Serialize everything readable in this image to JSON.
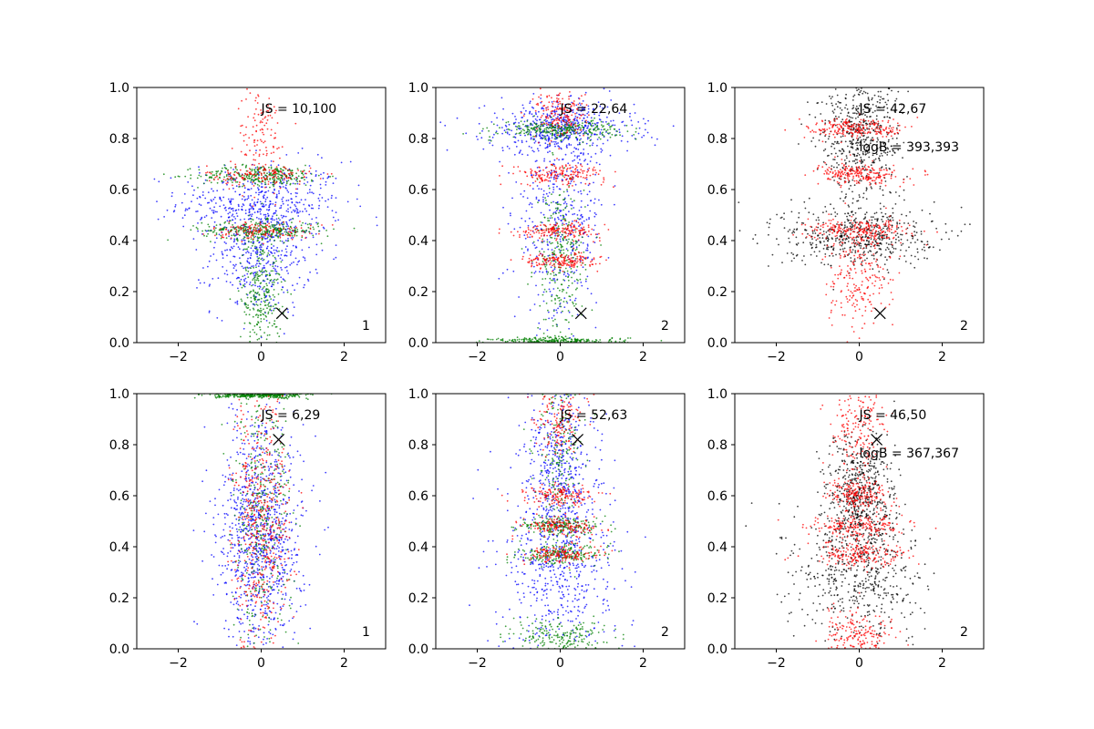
{
  "figure": {
    "background": "#ffffff"
  },
  "colors": {
    "blue": "#0000ff",
    "green": "#008000",
    "red": "#ff0000",
    "black": "#000000"
  },
  "chart_data": [
    {
      "type": "scatter",
      "xlim": [
        -3,
        3
      ],
      "ylim": [
        0,
        1
      ],
      "xticks": [
        -2,
        0,
        2
      ],
      "yticks": [
        0.0,
        0.2,
        0.4,
        0.6,
        0.8,
        1.0
      ],
      "xticklabels": [
        "−2",
        "0",
        "2"
      ],
      "yticklabels": [
        "0.0",
        "0.2",
        "0.4",
        "0.6",
        "0.8",
        "1.0"
      ],
      "annotations": {
        "js": "JS = 10,100",
        "logb": "",
        "corner": "1"
      },
      "marker_x": {
        "x": 0.5,
        "y": 0.115
      },
      "point_groups": [
        {
          "color": "blue",
          "n": 900,
          "bands": [
            {
              "y": 0.55,
              "sy": 0.08,
              "sx": 1.0
            },
            {
              "y": 0.35,
              "sy": 0.12,
              "sx": 0.6
            }
          ]
        },
        {
          "color": "green",
          "n": 900,
          "bands": [
            {
              "y": 0.655,
              "sy": 0.02,
              "sx": 0.75
            },
            {
              "y": 0.44,
              "sy": 0.018,
              "sx": 0.7
            },
            {
              "y": 0.2,
              "sy": 0.12,
              "sx": 0.25
            }
          ]
        },
        {
          "color": "red",
          "n": 400,
          "bands": [
            {
              "y": 0.655,
              "sy": 0.02,
              "sx": 0.65
            },
            {
              "y": 0.44,
              "sy": 0.018,
              "sx": 0.6
            },
            {
              "y": 0.8,
              "sy": 0.1,
              "sx": 0.3
            }
          ]
        }
      ]
    },
    {
      "type": "scatter",
      "xlim": [
        -3,
        3
      ],
      "ylim": [
        0,
        1
      ],
      "xticks": [
        -2,
        0,
        2
      ],
      "yticks": [
        0.0,
        0.2,
        0.4,
        0.6,
        0.8,
        1.0
      ],
      "xticklabels": [
        "−2",
        "0",
        "2"
      ],
      "yticklabels": [
        "0.0",
        "0.2",
        "0.4",
        "0.6",
        "0.8",
        "1.0"
      ],
      "annotations": {
        "js": "JS = 22,64",
        "logb": "",
        "corner": "2"
      },
      "marker_x": {
        "x": 0.5,
        "y": 0.115
      },
      "point_groups": [
        {
          "color": "blue",
          "n": 1000,
          "bands": [
            {
              "y": 0.84,
              "sy": 0.05,
              "sx": 0.9
            },
            {
              "y": 0.5,
              "sy": 0.22,
              "sx": 0.55
            }
          ]
        },
        {
          "color": "green",
          "n": 900,
          "bands": [
            {
              "y": 0.835,
              "sy": 0.018,
              "sx": 0.7
            },
            {
              "y": 0.005,
              "sy": 0.008,
              "sx": 0.8
            },
            {
              "y": 0.33,
              "sy": 0.15,
              "sx": 0.3
            }
          ]
        },
        {
          "color": "red",
          "n": 700,
          "bands": [
            {
              "y": 0.66,
              "sy": 0.02,
              "sx": 0.55
            },
            {
              "y": 0.44,
              "sy": 0.015,
              "sx": 0.5
            },
            {
              "y": 0.32,
              "sy": 0.015,
              "sx": 0.45
            },
            {
              "y": 0.9,
              "sy": 0.05,
              "sx": 0.3
            }
          ]
        }
      ]
    },
    {
      "type": "scatter",
      "xlim": [
        -3,
        3
      ],
      "ylim": [
        0,
        1
      ],
      "xticks": [
        -2,
        0,
        2
      ],
      "yticks": [
        0.0,
        0.2,
        0.4,
        0.6,
        0.8,
        1.0
      ],
      "xticklabels": [
        "−2",
        "0",
        "2"
      ],
      "yticklabels": [
        "0.0",
        "0.2",
        "0.4",
        "0.6",
        "0.8",
        "1.0"
      ],
      "annotations": {
        "js": "JS = 42,67",
        "logb": "logB = 393,393",
        "corner": "2"
      },
      "marker_x": {
        "x": 0.5,
        "y": 0.115
      },
      "point_groups": [
        {
          "color": "black",
          "n": 1100,
          "bands": [
            {
              "y": 0.42,
              "sy": 0.06,
              "sx": 0.9
            },
            {
              "y": 0.8,
              "sy": 0.12,
              "sx": 0.5
            }
          ]
        },
        {
          "color": "red",
          "n": 900,
          "bands": [
            {
              "y": 0.84,
              "sy": 0.02,
              "sx": 0.6
            },
            {
              "y": 0.66,
              "sy": 0.02,
              "sx": 0.5
            },
            {
              "y": 0.44,
              "sy": 0.02,
              "sx": 0.6
            },
            {
              "y": 0.25,
              "sy": 0.1,
              "sx": 0.4
            }
          ]
        }
      ]
    },
    {
      "type": "scatter",
      "xlim": [
        -3,
        3
      ],
      "ylim": [
        0,
        1
      ],
      "xticks": [
        -2,
        0,
        2
      ],
      "yticks": [
        0.0,
        0.2,
        0.4,
        0.6,
        0.8,
        1.0
      ],
      "xticklabels": [
        "−2",
        "0",
        "2"
      ],
      "yticklabels": [
        "0.0",
        "0.2",
        "0.4",
        "0.6",
        "0.8",
        "1.0"
      ],
      "annotations": {
        "js": "JS = 6,29",
        "logb": "",
        "corner": "1"
      },
      "marker_x": {
        "x": 0.42,
        "y": 0.82
      },
      "point_groups": [
        {
          "color": "blue",
          "n": 1000,
          "bands": [
            {
              "y": 0.45,
              "sy": 0.22,
              "sx": 0.5
            }
          ]
        },
        {
          "color": "green",
          "n": 800,
          "bands": [
            {
              "y": 0.5,
              "sy": 0.28,
              "sx": 0.35
            },
            {
              "y": 0.995,
              "sy": 0.006,
              "sx": 0.55
            }
          ]
        },
        {
          "color": "red",
          "n": 500,
          "bands": [
            {
              "y": 0.5,
              "sy": 0.25,
              "sx": 0.35
            }
          ]
        }
      ]
    },
    {
      "type": "scatter",
      "xlim": [
        -3,
        3
      ],
      "ylim": [
        0,
        1
      ],
      "xticks": [
        -2,
        0,
        2
      ],
      "yticks": [
        0.0,
        0.2,
        0.4,
        0.6,
        0.8,
        1.0
      ],
      "xticklabels": [
        "−2",
        "0",
        "2"
      ],
      "yticklabels": [
        "0.0",
        "0.2",
        "0.4",
        "0.6",
        "0.8",
        "1.0"
      ],
      "annotations": {
        "js": "JS = 52,63",
        "logb": "",
        "corner": "2"
      },
      "marker_x": {
        "x": 0.42,
        "y": 0.82
      },
      "point_groups": [
        {
          "color": "blue",
          "n": 1000,
          "bands": [
            {
              "y": 0.3,
              "sy": 0.2,
              "sx": 0.7
            },
            {
              "y": 0.7,
              "sy": 0.2,
              "sx": 0.4
            }
          ]
        },
        {
          "color": "green",
          "n": 800,
          "bands": [
            {
              "y": 0.48,
              "sy": 0.018,
              "sx": 0.5
            },
            {
              "y": 0.37,
              "sy": 0.018,
              "sx": 0.5
            },
            {
              "y": 0.05,
              "sy": 0.035,
              "sx": 0.6
            },
            {
              "y": 0.75,
              "sy": 0.15,
              "sx": 0.3
            }
          ]
        },
        {
          "color": "red",
          "n": 600,
          "bands": [
            {
              "y": 0.6,
              "sy": 0.02,
              "sx": 0.4
            },
            {
              "y": 0.48,
              "sy": 0.018,
              "sx": 0.45
            },
            {
              "y": 0.37,
              "sy": 0.018,
              "sx": 0.45
            },
            {
              "y": 0.9,
              "sy": 0.07,
              "sx": 0.3
            }
          ]
        }
      ]
    },
    {
      "type": "scatter",
      "xlim": [
        -3,
        3
      ],
      "ylim": [
        0,
        1
      ],
      "xticks": [
        -2,
        0,
        2
      ],
      "yticks": [
        0.0,
        0.2,
        0.4,
        0.6,
        0.8,
        1.0
      ],
      "xticklabels": [
        "−2",
        "0",
        "2"
      ],
      "yticklabels": [
        "0.0",
        "0.2",
        "0.4",
        "0.6",
        "0.8",
        "1.0"
      ],
      "annotations": {
        "js": "JS = 46,50",
        "logb": "logB = 367,367",
        "corner": "2"
      },
      "marker_x": {
        "x": 0.42,
        "y": 0.82
      },
      "point_groups": [
        {
          "color": "black",
          "n": 1100,
          "bands": [
            {
              "y": 0.3,
              "sy": 0.13,
              "sx": 0.75
            },
            {
              "y": 0.6,
              "sy": 0.12,
              "sx": 0.4
            }
          ]
        },
        {
          "color": "red",
          "n": 1000,
          "bands": [
            {
              "y": 0.85,
              "sy": 0.1,
              "sx": 0.35
            },
            {
              "y": 0.48,
              "sy": 0.025,
              "sx": 0.55
            },
            {
              "y": 0.37,
              "sy": 0.025,
              "sx": 0.6
            },
            {
              "y": 0.05,
              "sy": 0.05,
              "sx": 0.45
            },
            {
              "y": 0.6,
              "sy": 0.03,
              "sx": 0.35
            }
          ]
        }
      ]
    }
  ]
}
